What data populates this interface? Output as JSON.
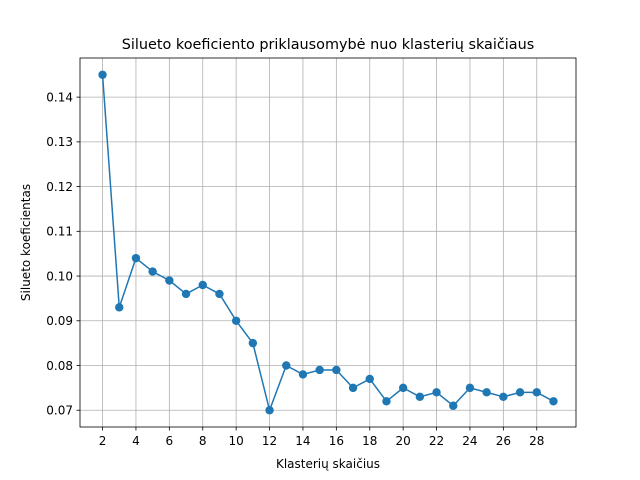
{
  "chart_data": {
    "type": "line",
    "title": "Silueto koeficiento priklausomybė nuo klasterių skaičiaus",
    "xlabel": "Klasterių skaičius",
    "ylabel": "Silueto koeficientas",
    "x": [
      2,
      3,
      4,
      5,
      6,
      7,
      8,
      9,
      10,
      11,
      12,
      13,
      14,
      15,
      16,
      17,
      18,
      19,
      20,
      21,
      22,
      23,
      24,
      25,
      26,
      27,
      28,
      29
    ],
    "y": [
      0.145,
      0.093,
      0.104,
      0.101,
      0.099,
      0.096,
      0.098,
      0.096,
      0.09,
      0.085,
      0.07,
      0.08,
      0.078,
      0.079,
      0.079,
      0.075,
      0.077,
      0.072,
      0.075,
      0.073,
      0.074,
      0.071,
      0.075,
      0.074,
      0.073,
      0.074,
      0.074,
      0.072
    ],
    "xticks": [
      2,
      4,
      6,
      8,
      10,
      12,
      14,
      16,
      18,
      20,
      22,
      24,
      26,
      28
    ],
    "yticks": [
      0.07,
      0.08,
      0.09,
      0.1,
      0.11,
      0.12,
      0.13,
      0.14
    ],
    "ytick_labels": [
      "0.07",
      "0.08",
      "0.09",
      "0.10",
      "0.11",
      "0.12",
      "0.13",
      "0.14"
    ],
    "xlim": [
      0.65,
      30.35
    ],
    "ylim": [
      0.06625,
      0.14875
    ],
    "grid": true,
    "marker": "circle",
    "color": "#1f77b4"
  }
}
